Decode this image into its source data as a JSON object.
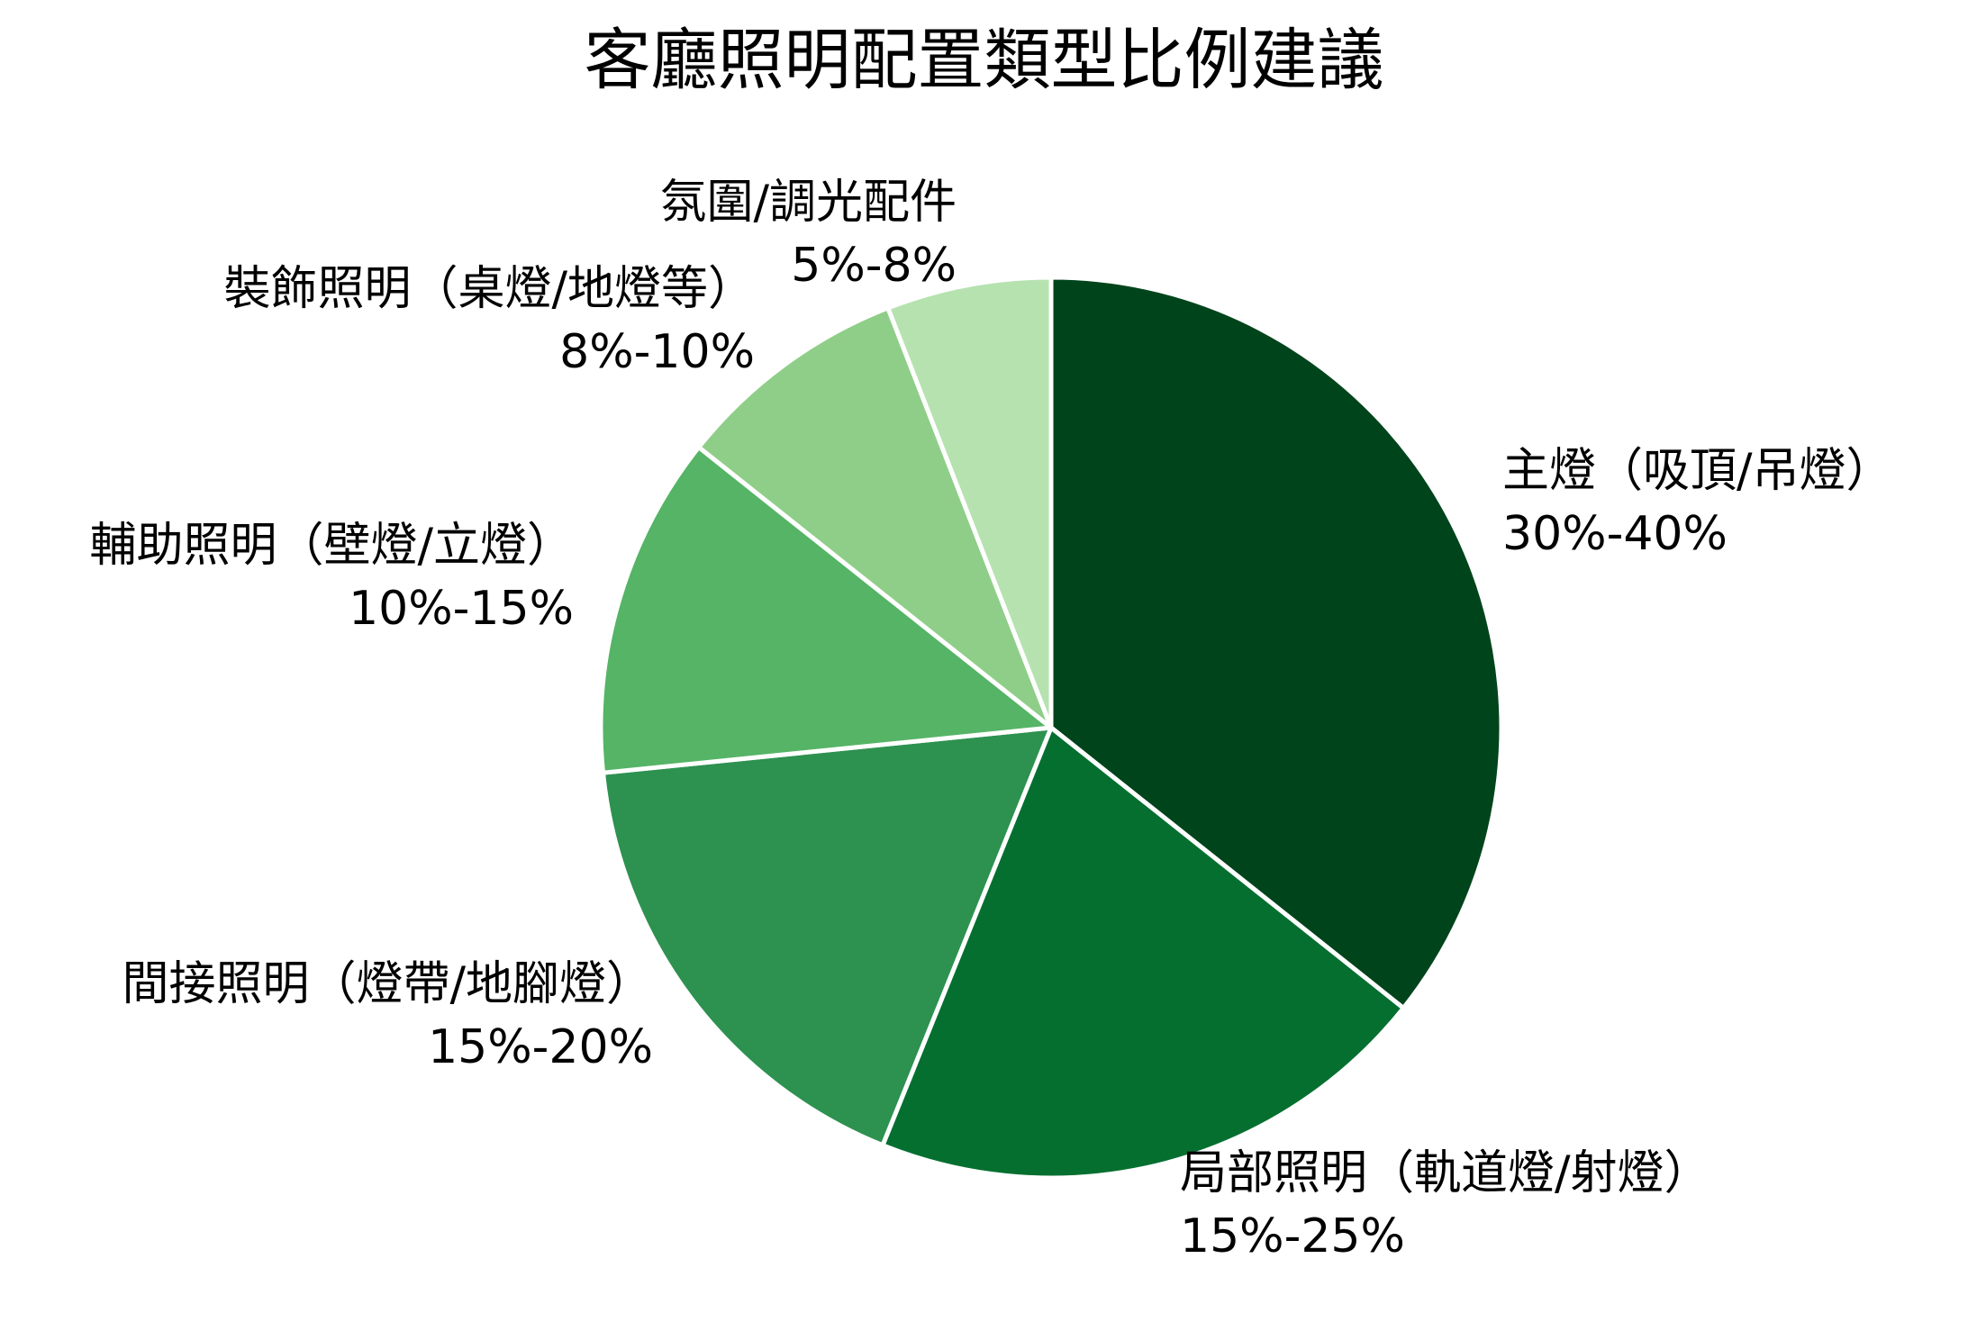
{
  "chart_data": {
    "type": "pie",
    "title": "客廳照明配置類型比例建議",
    "start_angle": "90° (12 o'clock), clockwise",
    "categories": [
      "主燈（吸頂/吊燈）",
      "局部照明（軌道燈/射燈）",
      "間接照明（燈帶/地腳燈）",
      "輔助照明（壁燈/立燈）",
      "裝飾照明（桌燈/地燈等）",
      "氛圍/調光配件"
    ],
    "range_labels": [
      "30%-40%",
      "15%-25%",
      "15%-20%",
      "10%-15%",
      "8%-10%",
      "5%-8%"
    ],
    "values": [
      35.7,
      20.4,
      17.3,
      12.3,
      8.4,
      5.9
    ],
    "colors": [
      "#00441b",
      "#056f30",
      "#2d9150",
      "#55b466",
      "#8fce88",
      "#b6e2b0"
    ],
    "legend": "none (labels placed beside slices)",
    "edgecolor": "#ffffff"
  },
  "labels": [
    {
      "name": "主燈（吸頂/吊燈）",
      "range": "30%-40%"
    },
    {
      "name": "局部照明（軌道燈/射燈）",
      "range": "15%-25%"
    },
    {
      "name": "間接照明（燈帶/地腳燈）",
      "range": "15%-20%"
    },
    {
      "name": "輔助照明（壁燈/立燈）",
      "range": "10%-15%"
    },
    {
      "name": "裝飾照明（桌燈/地燈等）",
      "range": "8%-10%"
    },
    {
      "name": "氛圍/調光配件",
      "range": "5%-8%"
    }
  ]
}
